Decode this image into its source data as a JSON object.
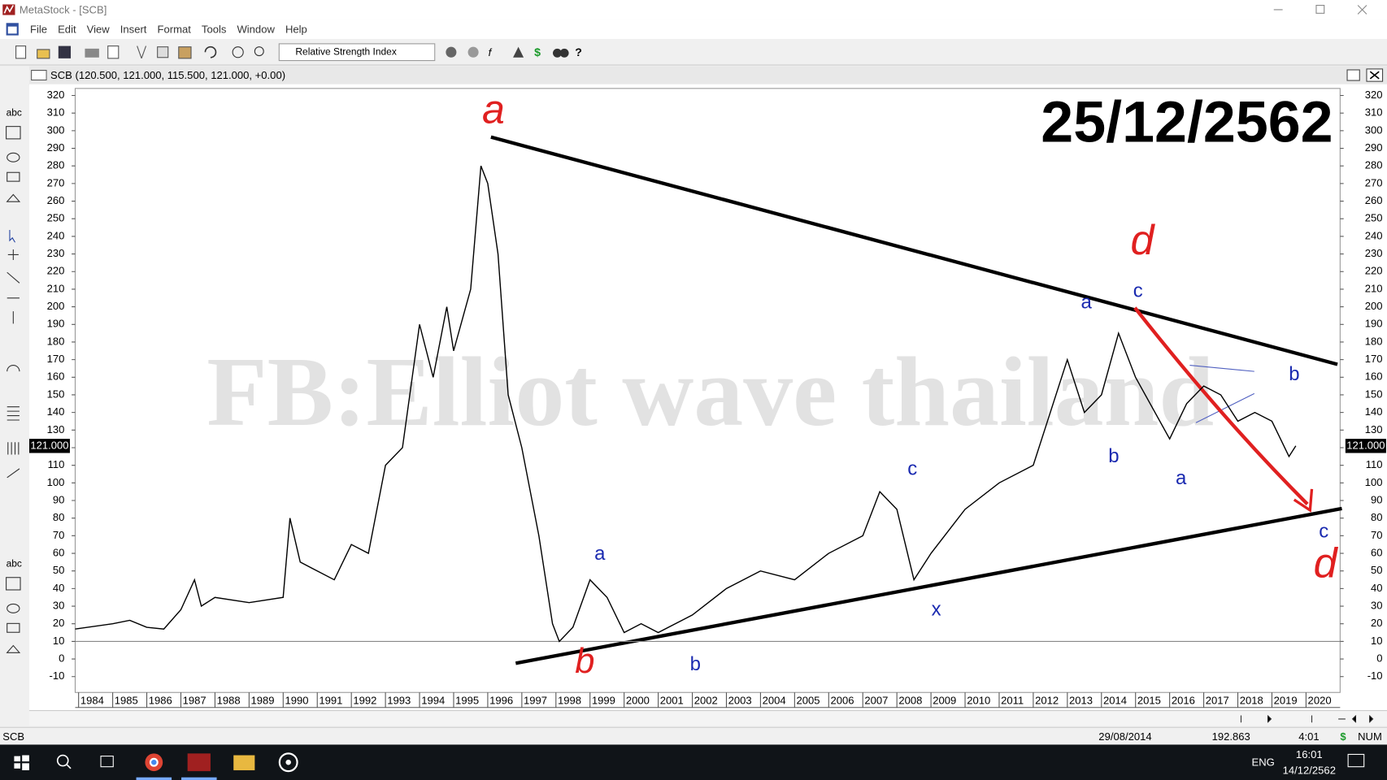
{
  "window": {
    "title": "MetaStock - [SCB]"
  },
  "menu": [
    "File",
    "Edit",
    "View",
    "Insert",
    "Format",
    "Tools",
    "Window",
    "Help"
  ],
  "toolbar": {
    "indicator": "Relative Strength Index"
  },
  "left_tools": [
    "abc",
    "abc"
  ],
  "chart_header": "SCB (120.500, 121.000, 115.500, 121.000, +0.00)",
  "chart_data": {
    "type": "line",
    "x": [
      1983.9,
      1985,
      1985.5,
      1986,
      1986.5,
      1987,
      1987.4,
      1987.6,
      1988,
      1989,
      1990,
      1990.2,
      1990.5,
      1991,
      1991.5,
      1992,
      1992.5,
      1993,
      1993.5,
      1994,
      1994.4,
      1994.8,
      1995,
      1995.5,
      1995.8,
      1996,
      1996.3,
      1996.6,
      1997,
      1997.5,
      1997.9,
      1998.1,
      1998.5,
      1999,
      1999.5,
      2000,
      2000.5,
      2001,
      2002,
      2003,
      2004,
      2005,
      2006,
      2007,
      2007.5,
      2008,
      2008.5,
      2009,
      2010,
      2011,
      2012,
      2013,
      2013.5,
      2014,
      2014.5,
      2015,
      2016,
      2016.5,
      2017,
      2017.5,
      2018,
      2018.5,
      2019,
      2019.5,
      2019.7
    ],
    "values": [
      17,
      20,
      22,
      18,
      17,
      28,
      45,
      30,
      35,
      32,
      35,
      80,
      55,
      50,
      45,
      65,
      60,
      110,
      120,
      190,
      160,
      200,
      175,
      210,
      280,
      270,
      230,
      150,
      120,
      70,
      20,
      10,
      18,
      45,
      35,
      15,
      20,
      15,
      25,
      40,
      50,
      45,
      60,
      70,
      95,
      85,
      45,
      60,
      85,
      100,
      110,
      170,
      140,
      150,
      185,
      160,
      125,
      145,
      155,
      150,
      135,
      140,
      135,
      115,
      121
    ],
    "color": "#000000",
    "xlim": [
      1983.9,
      2021.0
    ],
    "xticks": [
      1984,
      1985,
      1986,
      1987,
      1988,
      1989,
      1990,
      1991,
      1992,
      1993,
      1994,
      1995,
      1996,
      1997,
      1998,
      1999,
      2000,
      2001,
      2002,
      2003,
      2004,
      2005,
      2006,
      2007,
      2008,
      2009,
      2010,
      2011,
      2012,
      2013,
      2014,
      2015,
      2016,
      2017,
      2018,
      2019,
      2020
    ],
    "ylim": [
      -19,
      324
    ],
    "yticks": [
      -10,
      0,
      10,
      20,
      30,
      40,
      50,
      60,
      70,
      80,
      90,
      100,
      110,
      120,
      130,
      140,
      150,
      160,
      170,
      180,
      190,
      200,
      210,
      220,
      230,
      240,
      250,
      260,
      270,
      280,
      290,
      300,
      310,
      320
    ],
    "reference_line": 10,
    "last_value_label": "121.000",
    "date_label": "25/12/2562",
    "watermark": "FB:Elliot wave thailand",
    "wave_labels": [
      {
        "text": "a",
        "color": "#e02020"
      },
      {
        "text": "b",
        "color": "#e02020"
      },
      {
        "text": "d",
        "color": "#e02020"
      },
      {
        "text": "d",
        "color": "#e02020"
      },
      {
        "text": "a",
        "color": "#1a2ab0"
      },
      {
        "text": "b",
        "color": "#1a2ab0"
      },
      {
        "text": "c",
        "color": "#1a2ab0"
      },
      {
        "text": "x",
        "color": "#1a2ab0"
      },
      {
        "text": "a",
        "color": "#1a2ab0"
      },
      {
        "text": "b",
        "color": "#1a2ab0"
      },
      {
        "text": "c",
        "color": "#1a2ab0"
      },
      {
        "text": "a",
        "color": "#1a2ab0"
      },
      {
        "text": "b",
        "color": "#1a2ab0"
      },
      {
        "text": "c",
        "color": "#1a2ab0"
      }
    ]
  },
  "status_bar": {
    "symbol": "SCB",
    "date": "29/08/2014",
    "value": "192.863",
    "time": "4:01",
    "currency": "$",
    "mode": "NUM"
  },
  "taskbar": {
    "language": "ENG",
    "time": "16:01",
    "date": "14/12/2562"
  }
}
